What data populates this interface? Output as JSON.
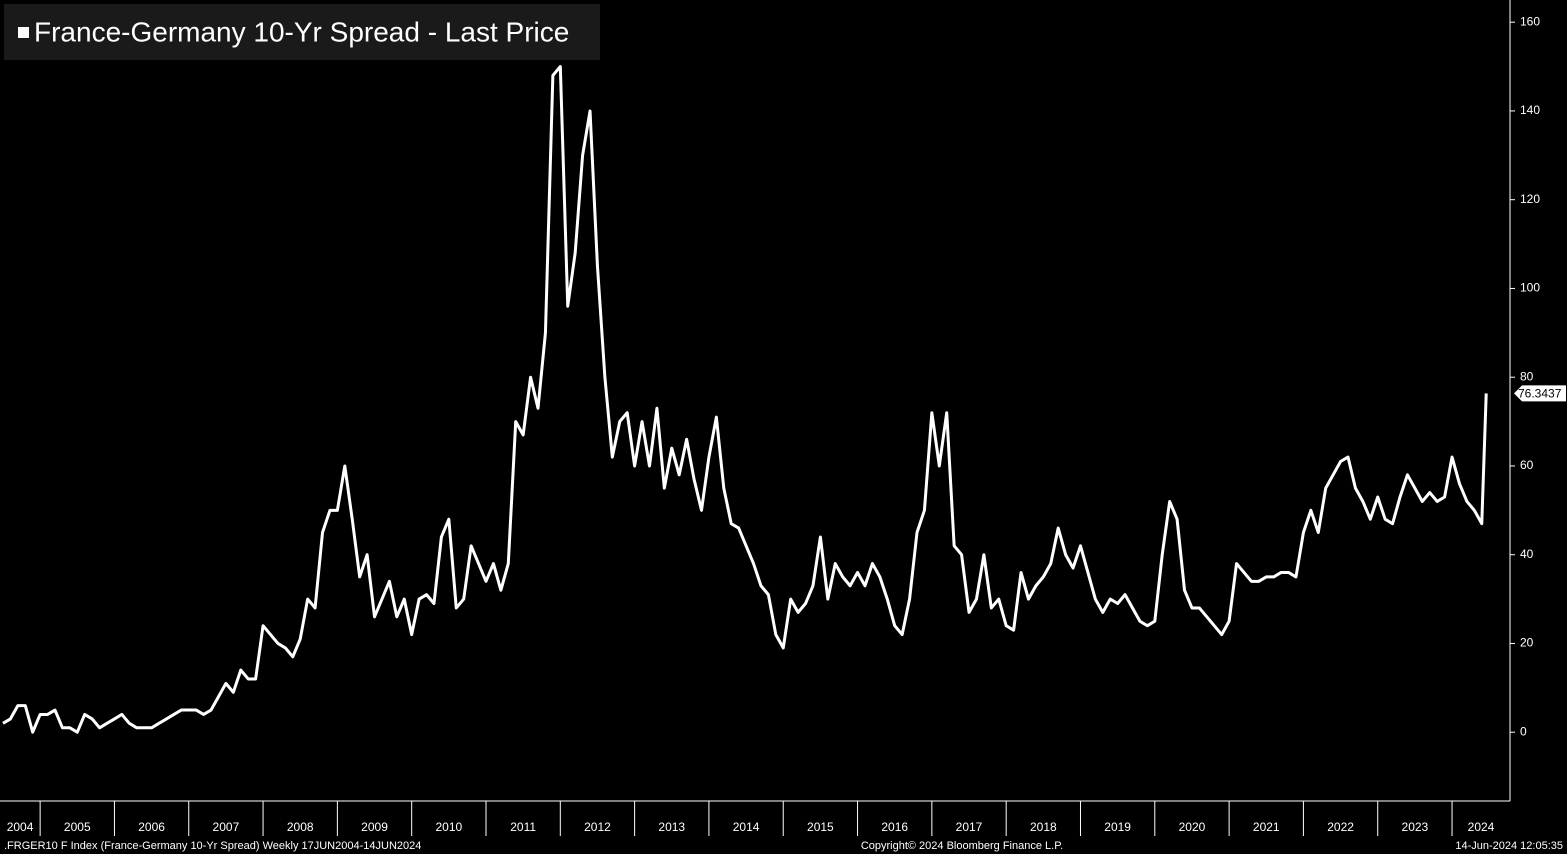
{
  "chart_data": {
    "type": "line",
    "series": [
      {
        "name": "France-Germany 10-Yr Spread - Last Price",
        "color": "#ffffff",
        "values": [
          2,
          3,
          6,
          6,
          0,
          4,
          4,
          5,
          1,
          1,
          0,
          4,
          3,
          1,
          2,
          3,
          4,
          2,
          1,
          1,
          1,
          2,
          3,
          4,
          5,
          5,
          5,
          4,
          5,
          8,
          11,
          9,
          14,
          12,
          12,
          24,
          22,
          20,
          19,
          17,
          21,
          30,
          28,
          45,
          50,
          50,
          60,
          48,
          35,
          40,
          26,
          30,
          34,
          26,
          30,
          22,
          30,
          31,
          29,
          44,
          48,
          28,
          30,
          42,
          38,
          34,
          38,
          32,
          38,
          70,
          67,
          80,
          73,
          90,
          148,
          150,
          96,
          108,
          130,
          140,
          105,
          80,
          62,
          70,
          72,
          60,
          70,
          60,
          73,
          55,
          64,
          58,
          66,
          57,
          50,
          62,
          71,
          55,
          47,
          46,
          42,
          38,
          33,
          31,
          22,
          19,
          30,
          27,
          29,
          33,
          44,
          30,
          38,
          35,
          33,
          36,
          33,
          38,
          35,
          30,
          24,
          22,
          30,
          45,
          50,
          72,
          60,
          72,
          42,
          40,
          27,
          30,
          40,
          28,
          30,
          24,
          23,
          36,
          30,
          33,
          35,
          38,
          46,
          40,
          37,
          42,
          36,
          30,
          27,
          30,
          29,
          31,
          28,
          25,
          24,
          25,
          40,
          52,
          48,
          32,
          28,
          28,
          26,
          24,
          22,
          25,
          38,
          36,
          34,
          34,
          35,
          35,
          36,
          36,
          35,
          45,
          50,
          45,
          55,
          58,
          61,
          62,
          55,
          52,
          48,
          53,
          48,
          47,
          53,
          58,
          55,
          52,
          54,
          52,
          53,
          62,
          56,
          52,
          50,
          47,
          76.3437
        ]
      }
    ],
    "x": [
      2004.5,
      2004.6,
      2004.7,
      2004.8,
      2004.9,
      2005.0,
      2005.1,
      2005.2,
      2005.3,
      2005.4,
      2005.5,
      2005.6,
      2005.7,
      2005.8,
      2005.9,
      2006.0,
      2006.1,
      2006.2,
      2006.3,
      2006.4,
      2006.5,
      2006.6,
      2006.7,
      2006.8,
      2006.9,
      2007.0,
      2007.1,
      2007.2,
      2007.3,
      2007.4,
      2007.5,
      2007.6,
      2007.7,
      2007.8,
      2007.9,
      2008.0,
      2008.1,
      2008.2,
      2008.3,
      2008.4,
      2008.5,
      2008.6,
      2008.7,
      2008.8,
      2008.9,
      2009.0,
      2009.1,
      2009.2,
      2009.3,
      2009.4,
      2009.5,
      2009.6,
      2009.7,
      2009.8,
      2009.9,
      2010.0,
      2010.1,
      2010.2,
      2010.3,
      2010.4,
      2010.5,
      2010.6,
      2010.7,
      2010.8,
      2010.9,
      2011.0,
      2011.1,
      2011.2,
      2011.3,
      2011.4,
      2011.5,
      2011.6,
      2011.7,
      2011.8,
      2011.9,
      2012.0,
      2012.1,
      2012.2,
      2012.3,
      2012.4,
      2012.5,
      2012.6,
      2012.7,
      2012.8,
      2012.9,
      2013.0,
      2013.1,
      2013.2,
      2013.3,
      2013.4,
      2013.5,
      2013.6,
      2013.7,
      2013.8,
      2013.9,
      2014.0,
      2014.1,
      2014.2,
      2014.3,
      2014.4,
      2014.5,
      2014.6,
      2014.7,
      2014.8,
      2014.9,
      2015.0,
      2015.1,
      2015.2,
      2015.3,
      2015.4,
      2015.5,
      2015.6,
      2015.7,
      2015.8,
      2015.9,
      2016.0,
      2016.1,
      2016.2,
      2016.3,
      2016.4,
      2016.5,
      2016.6,
      2016.7,
      2016.8,
      2016.9,
      2017.0,
      2017.1,
      2017.2,
      2017.3,
      2017.4,
      2017.5,
      2017.6,
      2017.7,
      2017.8,
      2017.9,
      2018.0,
      2018.1,
      2018.2,
      2018.3,
      2018.4,
      2018.5,
      2018.6,
      2018.7,
      2018.8,
      2018.9,
      2019.0,
      2019.1,
      2019.2,
      2019.3,
      2019.4,
      2019.5,
      2019.6,
      2019.7,
      2019.8,
      2019.9,
      2020.0,
      2020.1,
      2020.2,
      2020.3,
      2020.4,
      2020.5,
      2020.6,
      2020.7,
      2020.8,
      2020.9,
      2021.0,
      2021.1,
      2021.2,
      2021.3,
      2021.4,
      2021.5,
      2021.6,
      2021.7,
      2021.8,
      2021.9,
      2022.0,
      2022.1,
      2022.2,
      2022.3,
      2022.4,
      2022.5,
      2022.6,
      2022.7,
      2022.8,
      2022.9,
      2023.0,
      2023.1,
      2023.2,
      2023.3,
      2023.4,
      2023.5,
      2023.6,
      2023.7,
      2023.8,
      2023.9,
      2024.0,
      2024.1,
      2024.2,
      2024.3,
      2024.4,
      2024.46
    ],
    "xlim": [
      2004.46,
      2024.78
    ],
    "xticks": [
      2004,
      2005,
      2006,
      2007,
      2008,
      2009,
      2010,
      2011,
      2012,
      2013,
      2014,
      2015,
      2016,
      2017,
      2018,
      2019,
      2020,
      2021,
      2022,
      2023,
      2024
    ],
    "ylim": [
      -15.5,
      165
    ],
    "yticks": [
      0,
      20,
      40,
      60,
      80,
      100,
      120,
      140,
      160
    ],
    "last_price": 76.3437,
    "footer_left": ".FRGER10 F Index (France-Germany 10-Yr Spread)  Weekly 17JUN2004-14JUN2024",
    "footer_center": "Copyright© 2024 Bloomberg Finance L.P.",
    "footer_right": "14-Jun-2024 12:05:35"
  }
}
